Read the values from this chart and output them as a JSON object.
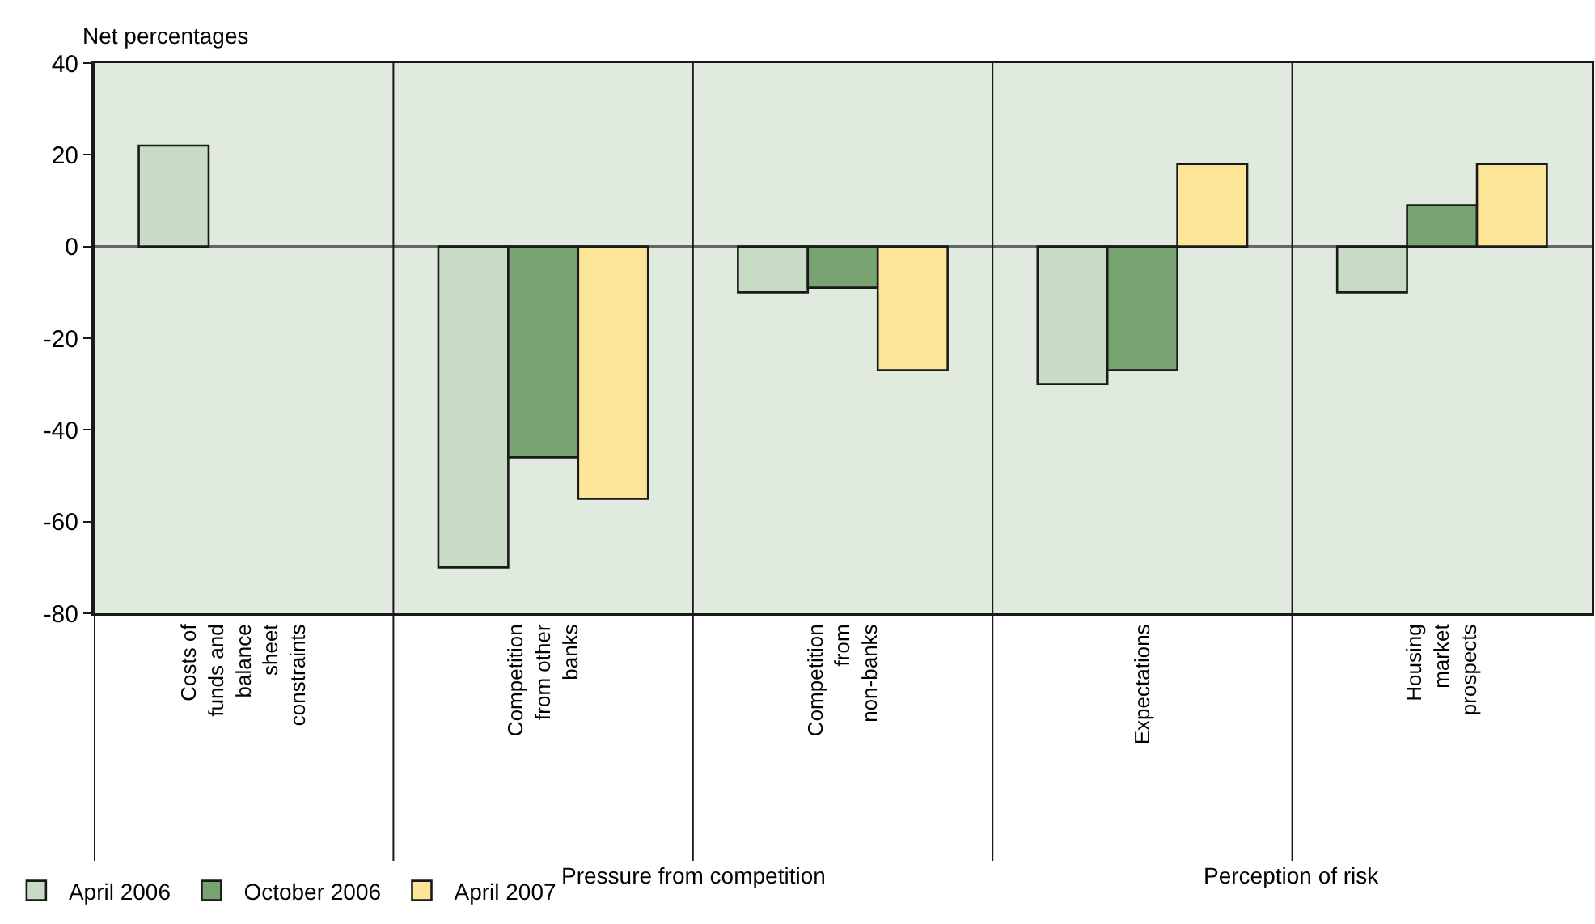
{
  "chart_data": {
    "type": "bar",
    "ylabel": "Net percentages",
    "categories": [
      "Costs of funds and balance sheet constraints",
      "Competition from other banks",
      "Competition from non-banks",
      "Expectations",
      "Housing market prospects"
    ],
    "series": [
      {
        "name": "April 2006",
        "color": "#c8dbc5",
        "values": [
          22,
          -70,
          -10,
          -30,
          -10
        ]
      },
      {
        "name": "October 2006",
        "color": "#76a36f",
        "values": [
          null,
          -46,
          -9,
          -27,
          9
        ]
      },
      {
        "name": "April 2007",
        "color": "#fde598",
        "values": [
          null,
          -55,
          -27,
          18,
          18
        ]
      }
    ],
    "annotations": [
      "Pressure from competition",
      "Perception of risk"
    ],
    "ylim": [
      -80,
      40
    ],
    "yticks": [
      -80,
      -60,
      -40,
      -20,
      0,
      20,
      40
    ],
    "grid": false,
    "legend": "bottom left"
  }
}
